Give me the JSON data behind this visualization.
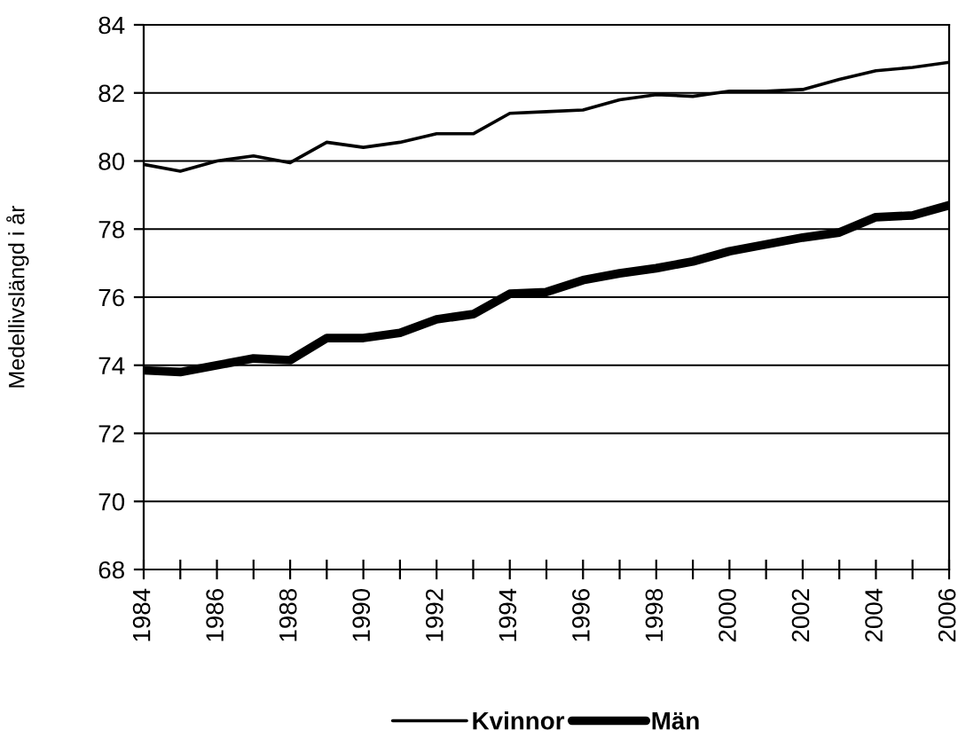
{
  "chart_data": {
    "type": "line",
    "ylabel": "Medellivslängd i år",
    "x": [
      1984,
      1985,
      1986,
      1987,
      1988,
      1989,
      1990,
      1991,
      1992,
      1993,
      1994,
      1995,
      1996,
      1997,
      1998,
      1999,
      2000,
      2001,
      2002,
      2003,
      2004,
      2005,
      2006
    ],
    "series": [
      {
        "name": "Kvinnor",
        "color": "#000000",
        "values": [
          79.9,
          79.7,
          80.0,
          80.15,
          79.95,
          80.55,
          80.4,
          80.55,
          80.8,
          80.8,
          81.4,
          81.45,
          81.5,
          81.8,
          81.95,
          81.9,
          82.05,
          82.05,
          82.1,
          82.4,
          82.65,
          82.75,
          82.9
        ]
      },
      {
        "name": "Män",
        "color": "#000000",
        "values": [
          73.85,
          73.8,
          74.0,
          74.2,
          74.15,
          74.8,
          74.8,
          74.95,
          75.35,
          75.5,
          76.1,
          76.15,
          76.5,
          76.7,
          76.85,
          77.05,
          77.35,
          77.55,
          77.75,
          77.9,
          78.35,
          78.4,
          78.7
        ]
      }
    ],
    "xlim": [
      1984,
      2006
    ],
    "xticks": [
      1984,
      {
        "value": 1985,
        "label": null
      },
      1986,
      {
        "value": 1987,
        "label": null
      },
      1988,
      {
        "value": 1989,
        "label": null
      },
      1990,
      {
        "value": 1991,
        "label": null
      },
      1992,
      {
        "value": 1993,
        "label": null
      },
      1994,
      {
        "value": 1995,
        "label": null
      },
      1996,
      {
        "value": 1997,
        "label": null
      },
      1998,
      {
        "value": 1999,
        "label": null
      },
      2000,
      {
        "value": 2001,
        "label": null
      },
      2002,
      {
        "value": 2003,
        "label": null
      },
      2004,
      {
        "value": 2005,
        "label": null
      },
      2006
    ],
    "ylim": [
      68,
      84
    ],
    "yticks": [
      68,
      70,
      72,
      74,
      76,
      78,
      80,
      82,
      84
    ],
    "grid": "y",
    "legend": "bottom",
    "marker": "none",
    "line_style": "solid"
  }
}
